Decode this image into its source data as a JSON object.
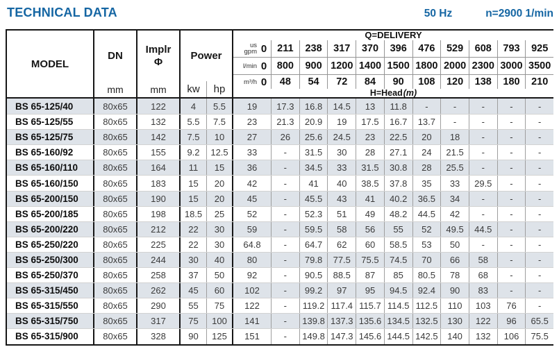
{
  "page": {
    "title": "TECHNICAL DATA",
    "frequency": "50 Hz",
    "speed": "n=2900 1/min"
  },
  "colors": {
    "accent_blue": "#1566a3",
    "row_shade": "#dee3e9",
    "border_dark": "#161616"
  },
  "table": {
    "headers": {
      "model": "MODEL",
      "dn": "DN",
      "implr_line1": "Implr",
      "implr_line2": "Φ",
      "power": "Power",
      "unit_mm": "mm",
      "unit_kw": "kw",
      "unit_hp": "hp",
      "delivery_title": "Q=DELIVERY",
      "head_title": "H=Head",
      "head_unit": "(m)"
    },
    "delivery": {
      "flow_rows": [
        {
          "id": "us-gpm",
          "unit_top": "us",
          "unit": "gpm",
          "zero": "0",
          "values": [
            "211",
            "238",
            "317",
            "370",
            "396",
            "476",
            "529",
            "608",
            "793",
            "925"
          ]
        },
        {
          "id": "l-min",
          "unit_top": "",
          "unit": "l/min",
          "zero": "0",
          "values": [
            "800",
            "900",
            "1200",
            "1400",
            "1500",
            "1800",
            "2000",
            "2300",
            "3000",
            "3500"
          ]
        },
        {
          "id": "m3-h",
          "unit_top": "",
          "unit": "m³/h",
          "zero": "0",
          "values": [
            "48",
            "54",
            "72",
            "84",
            "90",
            "108",
            "120",
            "138",
            "180",
            "210"
          ]
        }
      ]
    },
    "rows": [
      {
        "model": "BS 65-125/40",
        "dn": "80x65",
        "implr": "122",
        "kw": "4",
        "hp": "5.5",
        "head": [
          "19",
          "17.3",
          "16.8",
          "14.5",
          "13",
          "11.8",
          "-",
          "-",
          "-",
          "-",
          "-"
        ]
      },
      {
        "model": "BS 65-125/55",
        "dn": "80x65",
        "implr": "132",
        "kw": "5.5",
        "hp": "7.5",
        "head": [
          "23",
          "21.3",
          "20.9",
          "19",
          "17.5",
          "16.7",
          "13.7",
          "-",
          "-",
          "-",
          "-"
        ]
      },
      {
        "model": "BS 65-125/75",
        "dn": "80x65",
        "implr": "142",
        "kw": "7.5",
        "hp": "10",
        "head": [
          "27",
          "26",
          "25.6",
          "24.5",
          "23",
          "22.5",
          "20",
          "18",
          "-",
          "-",
          "-"
        ]
      },
      {
        "model": "BS 65-160/92",
        "dn": "80x65",
        "implr": "155",
        "kw": "9.2",
        "hp": "12.5",
        "head": [
          "33",
          "-",
          "31.5",
          "30",
          "28",
          "27.1",
          "24",
          "21.5",
          "-",
          "-",
          "-"
        ]
      },
      {
        "model": "BS 65-160/110",
        "dn": "80x65",
        "implr": "164",
        "kw": "11",
        "hp": "15",
        "head": [
          "36",
          "-",
          "34.5",
          "33",
          "31.5",
          "30.8",
          "28",
          "25.5",
          "-",
          "-",
          "-"
        ]
      },
      {
        "model": "BS 65-160/150",
        "dn": "80x65",
        "implr": "183",
        "kw": "15",
        "hp": "20",
        "head": [
          "42",
          "-",
          "41",
          "40",
          "38.5",
          "37.8",
          "35",
          "33",
          "29.5",
          "-",
          "-"
        ]
      },
      {
        "model": "BS 65-200/150",
        "dn": "80x65",
        "implr": "190",
        "kw": "15",
        "hp": "20",
        "head": [
          "45",
          "-",
          "45.5",
          "43",
          "41",
          "40.2",
          "36.5",
          "34",
          "-",
          "-",
          "-"
        ]
      },
      {
        "model": "BS 65-200/185",
        "dn": "80x65",
        "implr": "198",
        "kw": "18.5",
        "hp": "25",
        "head": [
          "52",
          "-",
          "52.3",
          "51",
          "49",
          "48.2",
          "44.5",
          "42",
          "-",
          "-",
          "-"
        ]
      },
      {
        "model": "BS 65-200/220",
        "dn": "80x65",
        "implr": "212",
        "kw": "22",
        "hp": "30",
        "head": [
          "59",
          "-",
          "59.5",
          "58",
          "56",
          "55",
          "52",
          "49.5",
          "44.5",
          "-",
          "-"
        ]
      },
      {
        "model": "BS 65-250/220",
        "dn": "80x65",
        "implr": "225",
        "kw": "22",
        "hp": "30",
        "head": [
          "64.8",
          "-",
          "64.7",
          "62",
          "60",
          "58.5",
          "53",
          "50",
          "-",
          "-",
          "-"
        ]
      },
      {
        "model": "BS 65-250/300",
        "dn": "80x65",
        "implr": "244",
        "kw": "30",
        "hp": "40",
        "head": [
          "80",
          "-",
          "79.8",
          "77.5",
          "75.5",
          "74.5",
          "70",
          "66",
          "58",
          "-",
          "-"
        ]
      },
      {
        "model": "BS 65-250/370",
        "dn": "80x65",
        "implr": "258",
        "kw": "37",
        "hp": "50",
        "head": [
          "92",
          "-",
          "90.5",
          "88.5",
          "87",
          "85",
          "80.5",
          "78",
          "68",
          "-",
          "-"
        ]
      },
      {
        "model": "BS 65-315/450",
        "dn": "80x65",
        "implr": "262",
        "kw": "45",
        "hp": "60",
        "head": [
          "102",
          "-",
          "99.2",
          "97",
          "95",
          "94.5",
          "92.4",
          "90",
          "83",
          "-",
          "-"
        ]
      },
      {
        "model": "BS 65-315/550",
        "dn": "80x65",
        "implr": "290",
        "kw": "55",
        "hp": "75",
        "head": [
          "122",
          "-",
          "119.2",
          "117.4",
          "115.7",
          "114.5",
          "112.5",
          "110",
          "103",
          "76",
          "-"
        ]
      },
      {
        "model": "BS 65-315/750",
        "dn": "80x65",
        "implr": "317",
        "kw": "75",
        "hp": "100",
        "head": [
          "141",
          "-",
          "139.8",
          "137.3",
          "135.6",
          "134.5",
          "132.5",
          "130",
          "122",
          "96",
          "65.5"
        ]
      },
      {
        "model": "BS 65-315/900",
        "dn": "80x65",
        "implr": "328",
        "kw": "90",
        "hp": "125",
        "head": [
          "151",
          "-",
          "149.8",
          "147.3",
          "145.6",
          "144.5",
          "142.5",
          "140",
          "132",
          "106",
          "75.5"
        ]
      }
    ]
  }
}
